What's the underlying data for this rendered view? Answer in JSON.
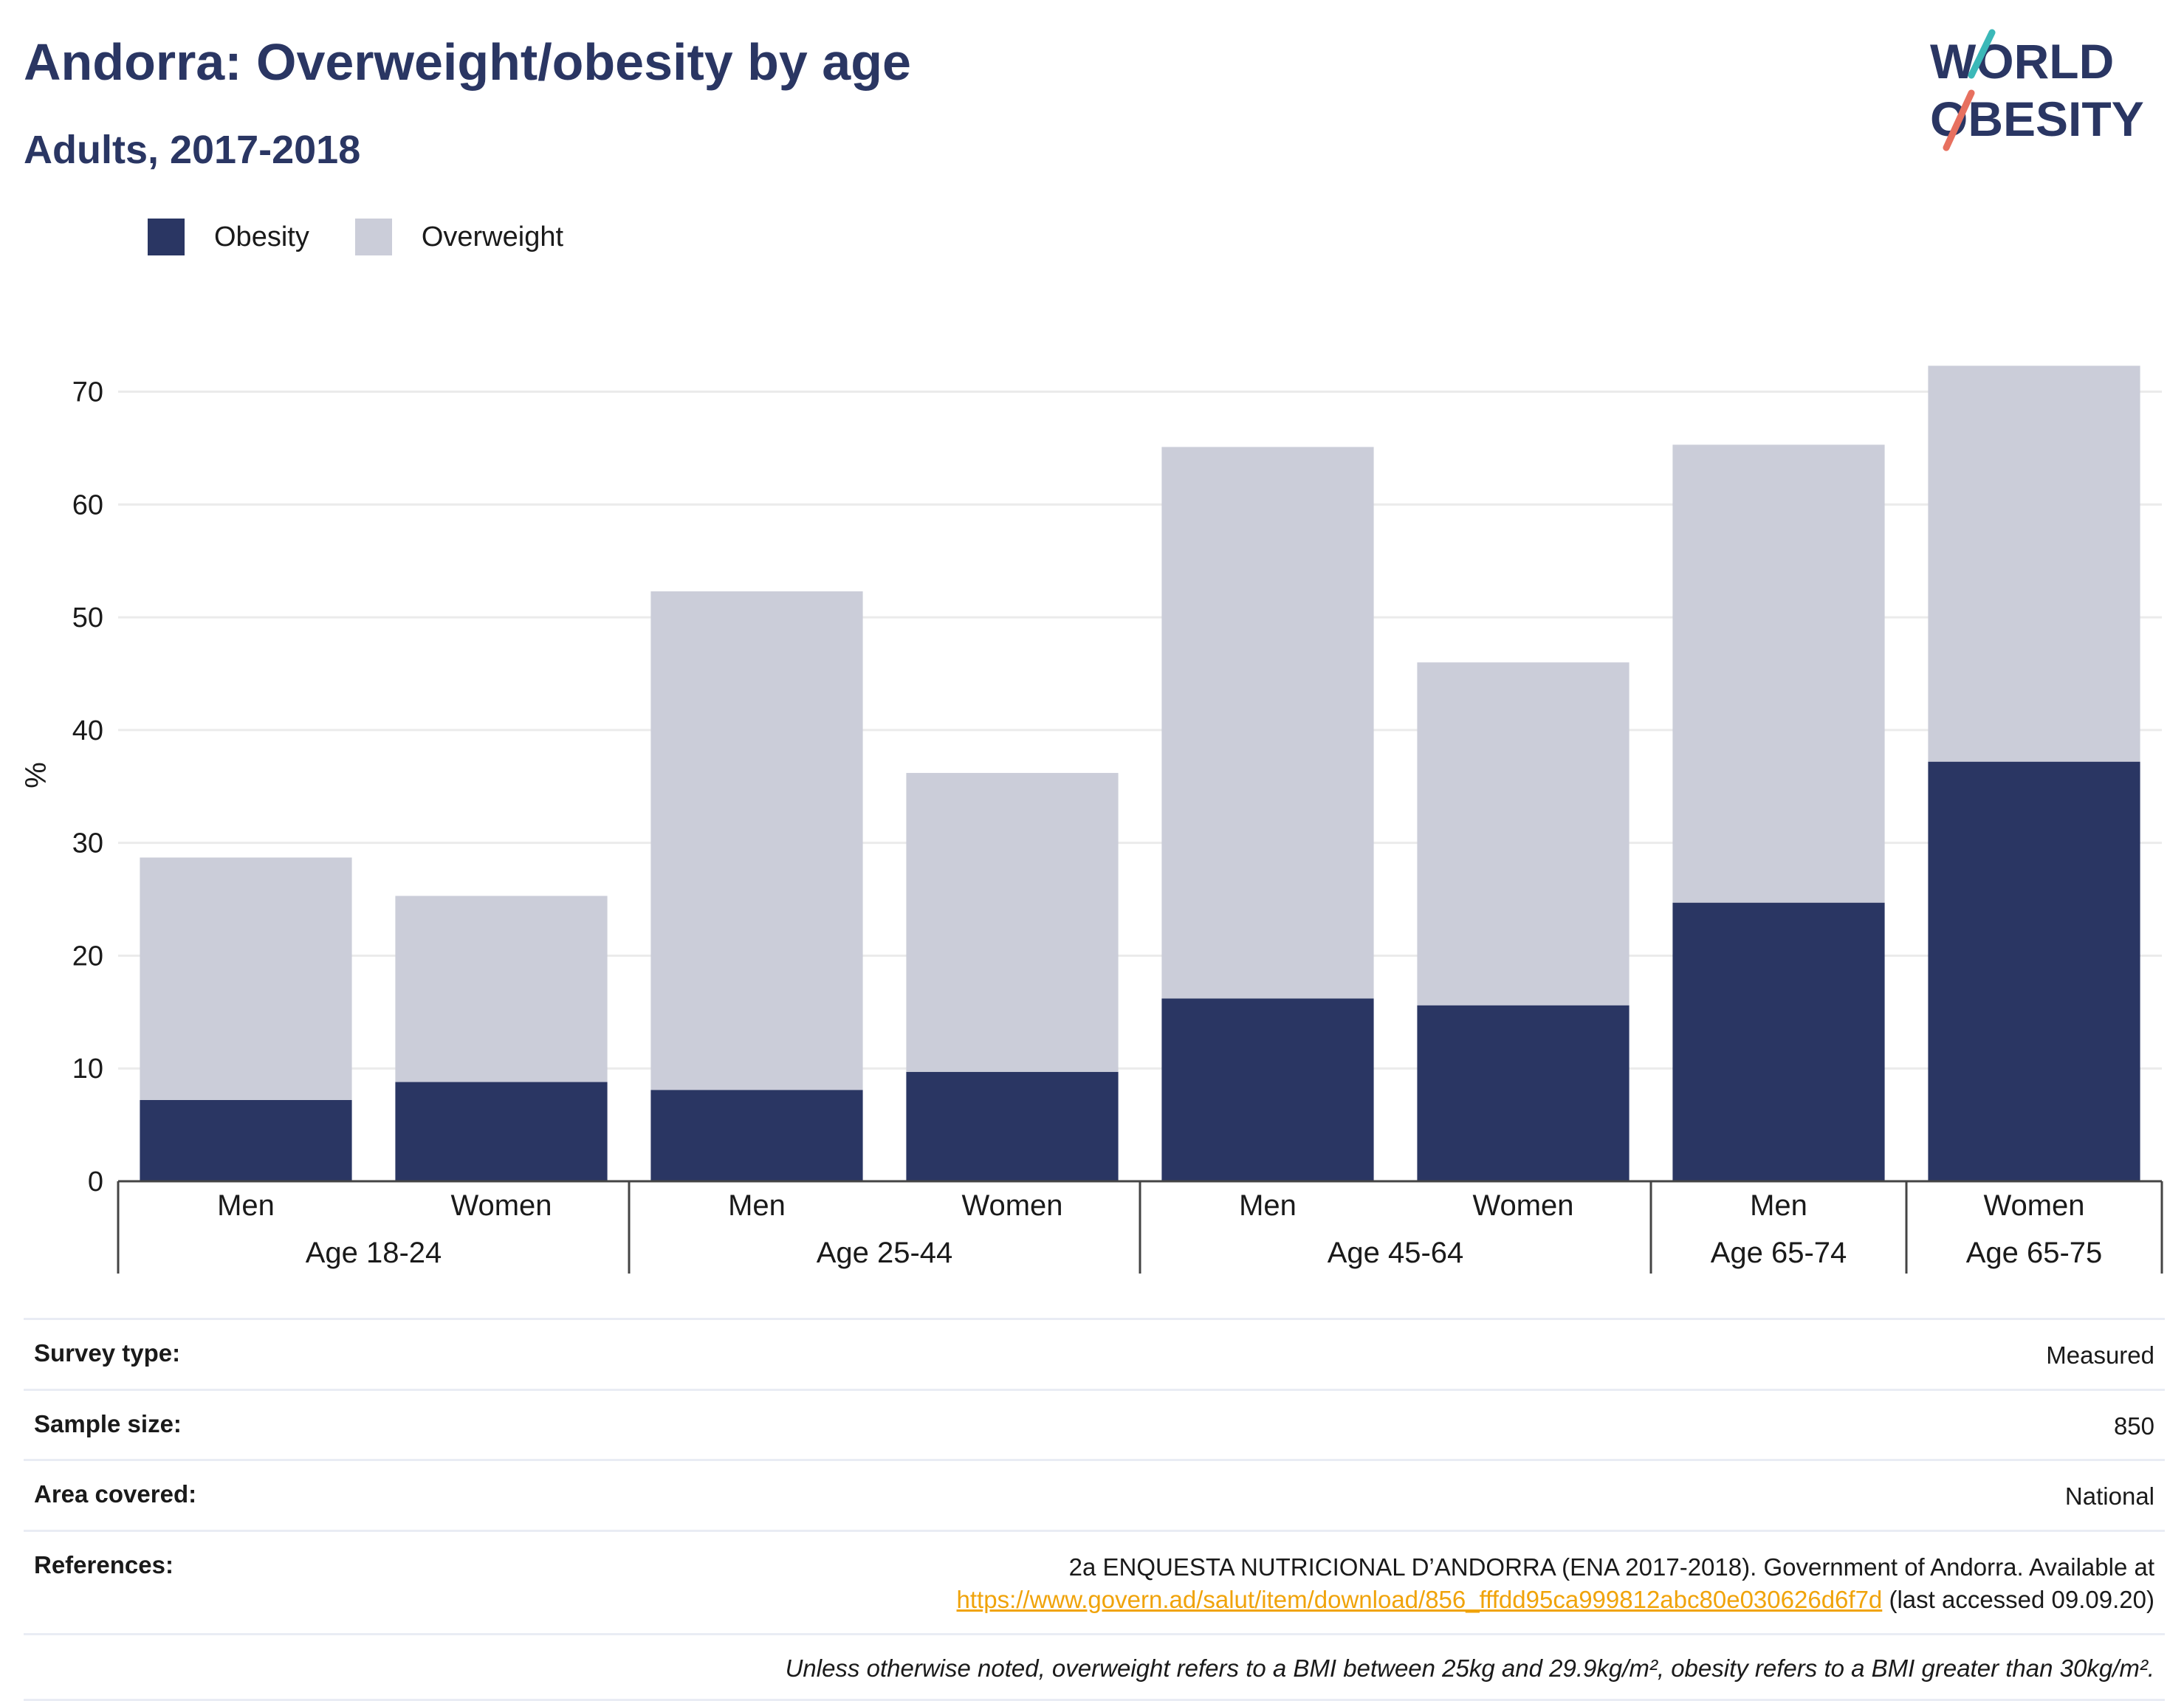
{
  "header": {
    "title": "Andorra: Overweight/obesity by age",
    "subtitle": "Adults, 2017-2018"
  },
  "logo": {
    "line1": "WORLD",
    "line2": "OBESITY"
  },
  "legend": [
    {
      "label": "Obesity",
      "color": "#2a3663"
    },
    {
      "label": "Overweight",
      "color": "#cbcdd9"
    }
  ],
  "chart_data": {
    "type": "bar",
    "stacked": true,
    "ylabel": "%",
    "ylim": [
      0,
      72
    ],
    "yticks": [
      0,
      10,
      20,
      30,
      40,
      50,
      60,
      70
    ],
    "grid": true,
    "legend_position": "top-left",
    "categories": [
      "Men",
      "Women",
      "Men",
      "Women",
      "Men",
      "Women",
      "Men",
      "Women"
    ],
    "groups": [
      {
        "label": "Age 18-24",
        "span": 2
      },
      {
        "label": "Age 25-44",
        "span": 2
      },
      {
        "label": "Age 45-64",
        "span": 2
      },
      {
        "label": "Age 65-74",
        "span": 1
      },
      {
        "label": "Age 65-75",
        "span": 1
      }
    ],
    "series": [
      {
        "name": "Obesity",
        "color": "#2a3663",
        "values": [
          7.2,
          8.8,
          8.1,
          9.7,
          16.2,
          15.6,
          24.7,
          37.2
        ]
      },
      {
        "name": "Overweight",
        "color": "#cbcdd9",
        "values": [
          21.5,
          16.5,
          44.2,
          26.5,
          48.9,
          30.4,
          40.6,
          35.1
        ]
      }
    ]
  },
  "meta": {
    "survey_type_label": "Survey type:",
    "survey_type_value": "Measured",
    "sample_size_label": "Sample size:",
    "sample_size_value": "850",
    "area_label": "Area covered:",
    "area_value": "National",
    "references_label": "References:",
    "references_text": "2a ENQUESTA NUTRICIONAL D’ANDORRA (ENA 2017-2018). Government of Andorra. Available at",
    "references_link": "https://www.govern.ad/salut/item/download/856_fffdd95ca999812abc80e030626d6f7d",
    "references_suffix": " (last accessed 09.09.20)",
    "note": "Unless otherwise noted, overweight refers to a BMI between 25kg and 29.9kg/m², obesity refers to a BMI greater than 30kg/m²."
  }
}
